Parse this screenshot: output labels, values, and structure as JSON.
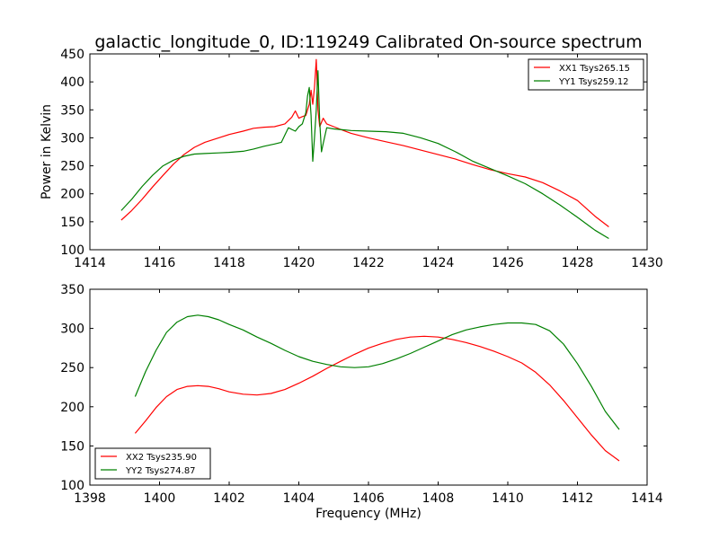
{
  "figure": {
    "title": "galactic_longitude_0, ID:119249 Calibrated On-source spectrum"
  },
  "chart_data": [
    {
      "type": "line",
      "title": "galactic_longitude_0, ID:119249 Calibrated On-source spectrum",
      "xlabel": "",
      "ylabel": "Power in Kelvin",
      "xlim": [
        1414,
        1430
      ],
      "ylim": [
        100,
        450
      ],
      "xticks": [
        1414,
        1416,
        1418,
        1420,
        1422,
        1424,
        1426,
        1428,
        1430
      ],
      "yticks": [
        100,
        150,
        200,
        250,
        300,
        350,
        400,
        450
      ],
      "legend": "top-right",
      "grid": false,
      "series": [
        {
          "name": "XX1 Tsys265.15",
          "color": "#ff0000",
          "x": [
            1414.9,
            1415.2,
            1415.5,
            1415.8,
            1416.1,
            1416.4,
            1416.7,
            1417.0,
            1417.3,
            1417.7,
            1418.0,
            1418.4,
            1418.7,
            1419.0,
            1419.3,
            1419.6,
            1419.8,
            1419.9,
            1420.0,
            1420.1,
            1420.2,
            1420.3,
            1420.35,
            1420.4,
            1420.45,
            1420.5,
            1420.55,
            1420.6,
            1420.7,
            1420.8,
            1421.0,
            1421.2,
            1421.5,
            1422.0,
            1422.5,
            1423.0,
            1423.5,
            1424.0,
            1424.5,
            1425.0,
            1425.5,
            1426.0,
            1426.5,
            1427.0,
            1427.5,
            1428.0,
            1428.5,
            1428.9
          ],
          "y": [
            153,
            170,
            190,
            212,
            233,
            253,
            270,
            283,
            292,
            300,
            306,
            312,
            317,
            319,
            320,
            325,
            337,
            348,
            335,
            338,
            340,
            360,
            385,
            360,
            390,
            440,
            350,
            320,
            335,
            325,
            320,
            315,
            308,
            300,
            293,
            286,
            278,
            270,
            262,
            252,
            243,
            236,
            230,
            220,
            205,
            188,
            160,
            141
          ]
        },
        {
          "name": "YY1 Tsys259.12",
          "color": "#008000",
          "x": [
            1414.9,
            1415.2,
            1415.5,
            1415.8,
            1416.1,
            1416.4,
            1416.7,
            1417.0,
            1417.3,
            1417.7,
            1418.0,
            1418.4,
            1418.7,
            1419.0,
            1419.3,
            1419.5,
            1419.6,
            1419.7,
            1419.8,
            1419.9,
            1420.0,
            1420.1,
            1420.2,
            1420.25,
            1420.3,
            1420.35,
            1420.4,
            1420.45,
            1420.5,
            1420.55,
            1420.6,
            1420.65,
            1420.7,
            1420.8,
            1421.0,
            1421.5,
            1422.0,
            1422.5,
            1423.0,
            1423.5,
            1424.0,
            1424.5,
            1425.0,
            1425.5,
            1426.0,
            1426.5,
            1427.0,
            1427.5,
            1428.0,
            1428.5,
            1428.9
          ],
          "y": [
            170,
            190,
            213,
            233,
            250,
            260,
            267,
            271,
            272,
            273,
            274,
            276,
            280,
            285,
            289,
            292,
            305,
            318,
            315,
            312,
            320,
            325,
            345,
            375,
            390,
            340,
            258,
            300,
            350,
            420,
            330,
            275,
            290,
            318,
            316,
            313,
            312,
            311,
            308,
            300,
            290,
            275,
            258,
            245,
            232,
            218,
            200,
            180,
            158,
            135,
            120
          ]
        }
      ]
    },
    {
      "type": "line",
      "title": "",
      "xlabel": "Frequency (MHz)",
      "ylabel": "",
      "xlim": [
        1398,
        1414
      ],
      "ylim": [
        100,
        350
      ],
      "xticks": [
        1398,
        1400,
        1402,
        1404,
        1406,
        1408,
        1410,
        1412,
        1414
      ],
      "yticks": [
        100,
        150,
        200,
        250,
        300,
        350
      ],
      "legend": "bottom-left",
      "grid": false,
      "series": [
        {
          "name": "XX2 Tsys235.90",
          "color": "#ff0000",
          "x": [
            1399.3,
            1399.6,
            1399.9,
            1400.2,
            1400.5,
            1400.8,
            1401.1,
            1401.4,
            1401.7,
            1402.0,
            1402.4,
            1402.8,
            1403.2,
            1403.6,
            1404.0,
            1404.4,
            1404.8,
            1405.2,
            1405.6,
            1406.0,
            1406.4,
            1406.8,
            1407.2,
            1407.6,
            1408.0,
            1408.4,
            1408.8,
            1409.2,
            1409.6,
            1410.0,
            1410.4,
            1410.8,
            1411.2,
            1411.6,
            1412.0,
            1412.4,
            1412.8,
            1413.2
          ],
          "y": [
            166,
            182,
            199,
            213,
            222,
            226,
            227,
            226,
            223,
            219,
            216,
            215,
            217,
            222,
            230,
            239,
            249,
            258,
            267,
            275,
            281,
            286,
            289,
            290,
            289,
            286,
            282,
            277,
            271,
            264,
            256,
            244,
            228,
            208,
            186,
            164,
            144,
            131
          ]
        },
        {
          "name": "YY2 Tsys274.87",
          "color": "#008000",
          "x": [
            1399.3,
            1399.6,
            1399.9,
            1400.2,
            1400.5,
            1400.8,
            1401.1,
            1401.4,
            1401.7,
            1402.0,
            1402.4,
            1402.8,
            1403.2,
            1403.6,
            1404.0,
            1404.4,
            1404.8,
            1405.2,
            1405.6,
            1406.0,
            1406.4,
            1406.8,
            1407.2,
            1407.6,
            1408.0,
            1408.4,
            1408.8,
            1409.2,
            1409.6,
            1410.0,
            1410.4,
            1410.8,
            1411.2,
            1411.6,
            1412.0,
            1412.4,
            1412.8,
            1413.2
          ],
          "y": [
            213,
            245,
            272,
            295,
            308,
            315,
            317,
            315,
            311,
            305,
            298,
            289,
            281,
            272,
            264,
            258,
            254,
            251,
            250,
            251,
            255,
            261,
            268,
            276,
            284,
            292,
            298,
            302,
            305,
            307,
            307,
            305,
            297,
            280,
            255,
            226,
            194,
            171
          ]
        }
      ]
    }
  ]
}
